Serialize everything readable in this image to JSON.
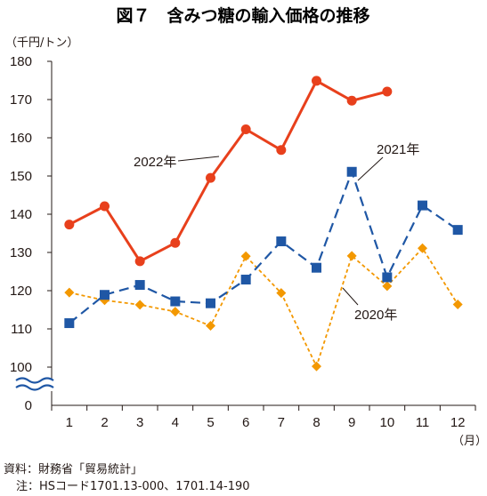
{
  "title": "図７　含みつ糖の輸入価格の推移",
  "source": "資料：財務省「貿易統計」",
  "note": "注：HSコード1701.13-000、1701.14-190",
  "chart_data": {
    "type": "line",
    "title": "図７　含みつ糖の輸入価格の推移",
    "ylabel": "（千円/トン）",
    "xlabel": "（月）",
    "categories": [
      "1",
      "2",
      "3",
      "4",
      "5",
      "6",
      "7",
      "8",
      "9",
      "10",
      "11",
      "12"
    ],
    "y_ticks": [
      "0",
      "100",
      "110",
      "120",
      "130",
      "140",
      "150",
      "160",
      "170",
      "180"
    ],
    "ylim": [
      100,
      180
    ],
    "axis_break": "0 to 100",
    "grid": false,
    "series": [
      {
        "name": "2020年",
        "color": "#f39800",
        "marker": "diamond",
        "dash": "short-dash",
        "values": [
          119.5,
          117.5,
          116.3,
          114.5,
          110.8,
          129,
          119.4,
          100.2,
          129.1,
          121.2,
          131.1,
          116.4
        ]
      },
      {
        "name": "2021年",
        "color": "#1f57a5",
        "marker": "square",
        "dash": "long-dash",
        "values": [
          111.5,
          118.9,
          121.5,
          117.2,
          116.7,
          122.9,
          132.9,
          126,
          151.1,
          123.5,
          142.3,
          135.9
        ]
      },
      {
        "name": "2022年",
        "color": "#e8401c",
        "marker": "circle",
        "dash": "solid",
        "values": [
          137.3,
          142.1,
          127.7,
          132.5,
          149.5,
          162.2,
          156.8,
          174.9,
          169.7,
          172.1,
          null,
          null
        ]
      }
    ]
  }
}
